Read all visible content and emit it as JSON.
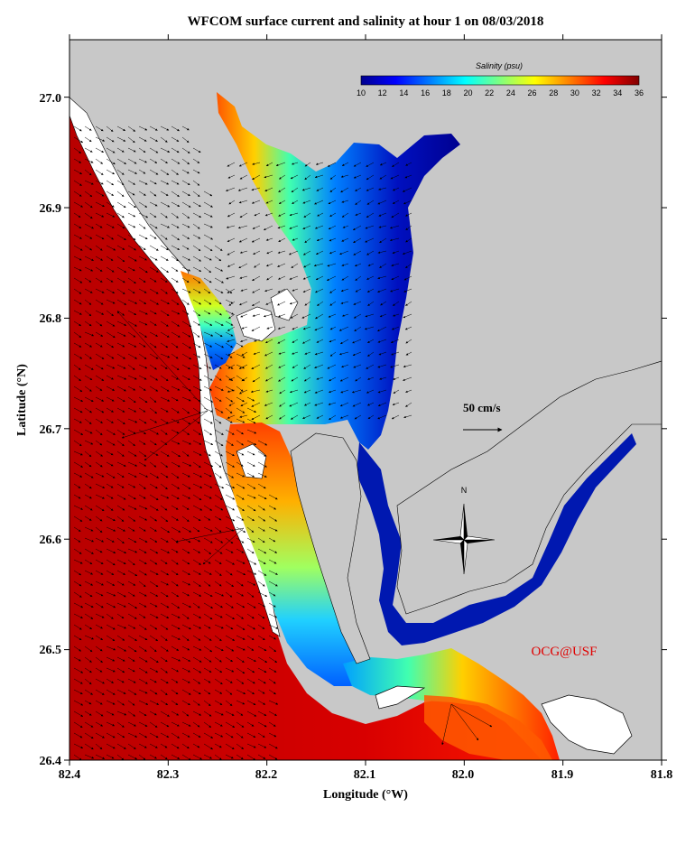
{
  "title": "WFCOM surface current and salinity at hour 1 on 08/03/2018",
  "x_axis": {
    "label": "Longitude (°W)",
    "ticks": [
      "82.4",
      "82.3",
      "82.2",
      "82.1",
      "82.0",
      "81.9",
      "81.8"
    ]
  },
  "y_axis": {
    "label": "Latitude (°N)",
    "ticks": [
      "26.4",
      "26.5",
      "26.6",
      "26.7",
      "26.8",
      "26.9",
      "27.0"
    ]
  },
  "colorbar": {
    "title": "Salinity (psu)",
    "min": 10,
    "max": 36,
    "ticks": [
      "10",
      "12",
      "14",
      "16",
      "18",
      "20",
      "22",
      "24",
      "26",
      "28",
      "30",
      "32",
      "34",
      "36"
    ],
    "colormap": "jet"
  },
  "scale_arrow": {
    "label": "50 cm/s",
    "speed_cm_s": 50
  },
  "compass": {
    "label": "N"
  },
  "credit": {
    "text": "OCG@USF",
    "color": "#e00000"
  },
  "colors": {
    "land": "#c8c8c8",
    "gulf": "#c80000",
    "frame": "#000000"
  }
}
